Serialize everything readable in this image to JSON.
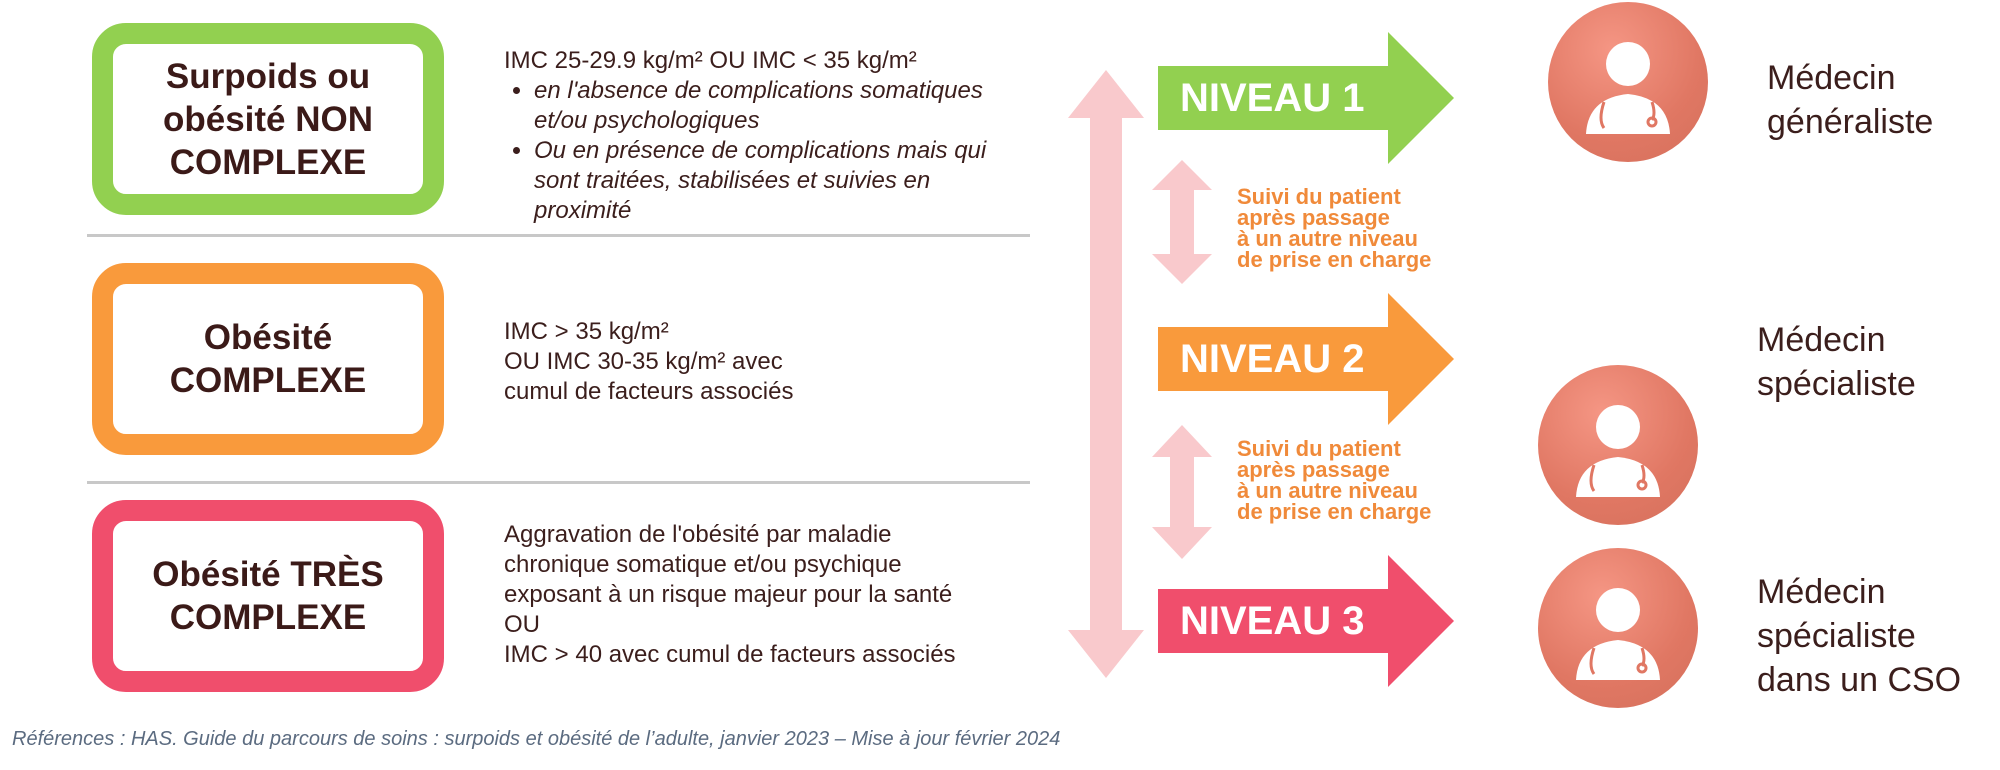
{
  "levels": [
    {
      "box_title": "Surpoids ou obésité NON COMPLEXE",
      "color": "#92d050",
      "criteria_main": "IMC 25-29.9 kg/m² OU IMC < 35 kg/m²",
      "criteria_bullets": [
        "en l'absence de complications somatiques et/ou psychologiques",
        "Ou en présence de complications mais qui sont traitées, stabilisées et suivies en proximité"
      ],
      "niveau": "NIVEAU 1",
      "doctor": "Médecin généraliste",
      "icon": "doctor-icon"
    },
    {
      "box_title": "Obésité COMPLEXE",
      "color": "#f99a3c",
      "criteria_lines": [
        "IMC > 35 kg/m²",
        "OU IMC 30-35 kg/m² avec",
        "cumul de facteurs associés"
      ],
      "niveau": "NIVEAU 2",
      "doctor": "Médecin spécialiste",
      "icon": "doctor-icon"
    },
    {
      "box_title": "Obésité TRÈS COMPLEXE",
      "color": "#f04e6c",
      "criteria_lines": [
        "Aggravation de l'obésité par maladie",
        "chronique somatique et/ou psychique",
        "exposant à un risque majeur pour la santé",
        "OU",
        "IMC > 40 avec cumul de facteurs associés"
      ],
      "niveau": "NIVEAU 3",
      "doctor": "Médecin spécialiste dans un CSO",
      "icon": "doctor-icon"
    }
  ],
  "follow_up": [
    "Suivi du patient",
    "après passage",
    "à un autre niveau",
    "de prise en charge"
  ],
  "arrow_color": "#f9c9cc",
  "follow_color": "#f08a3a",
  "footer": "Références : HAS. Guide du parcours de soins : surpoids et obésité de l’adulte, janvier 2023 – Mise à jour février 2024"
}
